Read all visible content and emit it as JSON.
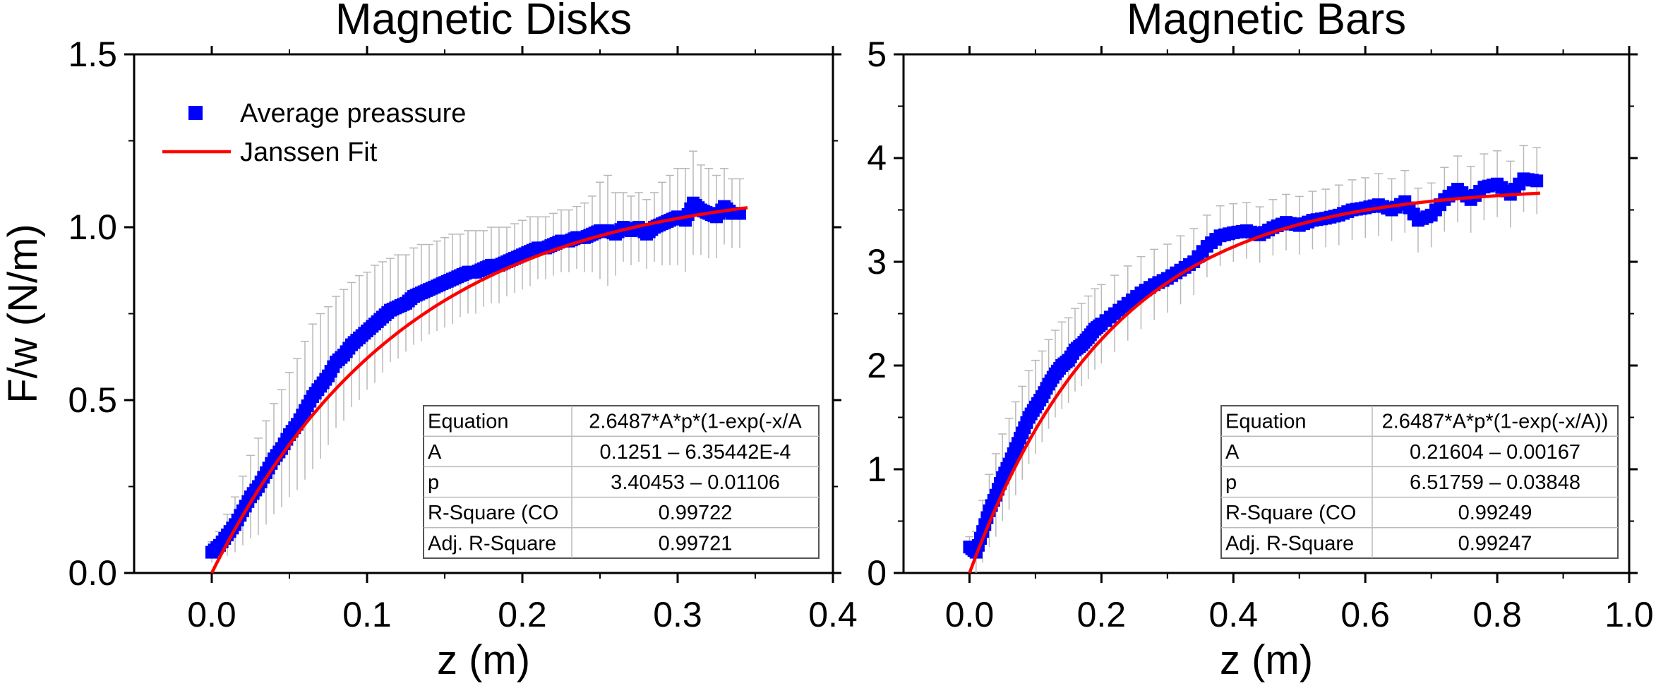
{
  "chart_data": [
    {
      "type": "scatter",
      "title": "Magnetic Disks",
      "xlabel": "z (m)",
      "ylabel": "F/w (N/m)",
      "xlim": [
        -0.05,
        0.4
      ],
      "ylim": [
        0,
        1.5
      ],
      "xticks": [
        "0.0",
        "0.1",
        "0.2",
        "0.3",
        "0.4"
      ],
      "yticks": [
        "0.0",
        "0.5",
        "1.0",
        "1.5"
      ],
      "grid": false,
      "legend_position": "top-left",
      "legend": [
        {
          "label": "Average preassure",
          "marker": "square",
          "color": "#0000ff"
        },
        {
          "label": "Janssen Fit",
          "marker": "line",
          "color": "#ff0000"
        }
      ],
      "series": [
        {
          "name": "Average preassure",
          "kind": "points",
          "color": "#0000ff",
          "x": [
            0.0,
            0.005,
            0.01,
            0.015,
            0.02,
            0.025,
            0.03,
            0.035,
            0.04,
            0.045,
            0.05,
            0.055,
            0.06,
            0.065,
            0.07,
            0.075,
            0.08,
            0.085,
            0.09,
            0.095,
            0.1,
            0.105,
            0.11,
            0.115,
            0.12,
            0.125,
            0.13,
            0.135,
            0.14,
            0.145,
            0.15,
            0.155,
            0.16,
            0.165,
            0.17,
            0.175,
            0.18,
            0.185,
            0.19,
            0.195,
            0.2,
            0.205,
            0.21,
            0.215,
            0.22,
            0.225,
            0.23,
            0.235,
            0.24,
            0.245,
            0.25,
            0.255,
            0.26,
            0.265,
            0.27,
            0.275,
            0.28,
            0.285,
            0.29,
            0.295,
            0.3,
            0.305,
            0.31,
            0.315,
            0.32,
            0.325,
            0.33,
            0.335,
            0.34
          ],
          "y": [
            0.06,
            0.08,
            0.11,
            0.14,
            0.18,
            0.22,
            0.25,
            0.29,
            0.33,
            0.36,
            0.4,
            0.43,
            0.47,
            0.51,
            0.54,
            0.57,
            0.61,
            0.63,
            0.66,
            0.68,
            0.7,
            0.72,
            0.74,
            0.76,
            0.77,
            0.78,
            0.8,
            0.81,
            0.82,
            0.83,
            0.84,
            0.85,
            0.86,
            0.87,
            0.87,
            0.88,
            0.89,
            0.89,
            0.9,
            0.91,
            0.92,
            0.93,
            0.94,
            0.94,
            0.95,
            0.96,
            0.96,
            0.97,
            0.97,
            0.98,
            0.99,
            0.99,
            0.98,
            1.0,
            0.99,
            1.0,
            0.98,
            1.0,
            1.01,
            1.02,
            1.03,
            1.02,
            1.07,
            1.05,
            1.04,
            1.03,
            1.06,
            1.04,
            1.04
          ],
          "error_y": [
            0.03,
            0.04,
            0.06,
            0.08,
            0.1,
            0.12,
            0.14,
            0.15,
            0.16,
            0.17,
            0.18,
            0.19,
            0.2,
            0.21,
            0.21,
            0.2,
            0.19,
            0.19,
            0.18,
            0.18,
            0.17,
            0.17,
            0.16,
            0.15,
            0.15,
            0.14,
            0.14,
            0.14,
            0.13,
            0.13,
            0.13,
            0.13,
            0.12,
            0.12,
            0.12,
            0.11,
            0.11,
            0.11,
            0.1,
            0.1,
            0.1,
            0.1,
            0.09,
            0.09,
            0.09,
            0.09,
            0.09,
            0.09,
            0.1,
            0.11,
            0.14,
            0.16,
            0.12,
            0.1,
            0.1,
            0.1,
            0.1,
            0.1,
            0.12,
            0.13,
            0.14,
            0.15,
            0.15,
            0.13,
            0.13,
            0.12,
            0.11,
            0.1,
            0.1
          ]
        },
        {
          "name": "Janssen Fit",
          "kind": "fit",
          "color": "#ff0000",
          "params": {
            "A": 0.1251,
            "p": 3.40453
          },
          "x_range": [
            0.0,
            0.345
          ]
        }
      ],
      "stats_table": [
        [
          "Equation",
          "2.6487*A*p*(1-exp(-x/A"
        ],
        [
          "A",
          "0.1251 – 6.35442E-4"
        ],
        [
          "p",
          "3.40453 – 0.01106"
        ],
        [
          "R-Square (CO",
          "0.99722"
        ],
        [
          "Adj. R-Square",
          "0.99721"
        ]
      ]
    },
    {
      "type": "scatter",
      "title": "Magnetic Bars",
      "xlabel": "z (m)",
      "ylabel": "",
      "xlim": [
        -0.1,
        1.0
      ],
      "ylim": [
        0,
        5
      ],
      "xticks": [
        "0.0",
        "0.2",
        "0.4",
        "0.6",
        "0.8",
        "1.0"
      ],
      "yticks": [
        "0",
        "1",
        "2",
        "3",
        "4",
        "5"
      ],
      "grid": false,
      "series": [
        {
          "name": "Average preassure",
          "kind": "points",
          "color": "#0000ff",
          "x": [
            0.0,
            0.01,
            0.02,
            0.03,
            0.04,
            0.05,
            0.06,
            0.07,
            0.08,
            0.09,
            0.1,
            0.11,
            0.12,
            0.13,
            0.14,
            0.15,
            0.16,
            0.17,
            0.18,
            0.19,
            0.2,
            0.22,
            0.24,
            0.26,
            0.28,
            0.3,
            0.32,
            0.34,
            0.36,
            0.38,
            0.4,
            0.42,
            0.44,
            0.46,
            0.48,
            0.5,
            0.52,
            0.54,
            0.56,
            0.58,
            0.6,
            0.62,
            0.64,
            0.66,
            0.68,
            0.7,
            0.72,
            0.74,
            0.76,
            0.78,
            0.8,
            0.82,
            0.84,
            0.86
          ],
          "y": [
            0.25,
            0.2,
            0.4,
            0.6,
            0.75,
            0.92,
            1.05,
            1.2,
            1.35,
            1.5,
            1.6,
            1.7,
            1.82,
            1.92,
            2.0,
            2.05,
            2.15,
            2.2,
            2.27,
            2.35,
            2.4,
            2.5,
            2.6,
            2.7,
            2.78,
            2.84,
            2.92,
            3.0,
            3.15,
            3.25,
            3.28,
            3.3,
            3.26,
            3.33,
            3.38,
            3.35,
            3.4,
            3.42,
            3.45,
            3.5,
            3.52,
            3.55,
            3.5,
            3.58,
            3.4,
            3.45,
            3.6,
            3.7,
            3.6,
            3.72,
            3.75,
            3.65,
            3.8,
            3.78
          ],
          "error_y": [
            0.1,
            0.2,
            0.3,
            0.35,
            0.4,
            0.42,
            0.44,
            0.45,
            0.45,
            0.45,
            0.45,
            0.44,
            0.43,
            0.42,
            0.42,
            0.41,
            0.4,
            0.4,
            0.4,
            0.39,
            0.38,
            0.37,
            0.36,
            0.35,
            0.34,
            0.33,
            0.33,
            0.32,
            0.3,
            0.29,
            0.28,
            0.27,
            0.27,
            0.27,
            0.27,
            0.28,
            0.28,
            0.28,
            0.29,
            0.29,
            0.29,
            0.3,
            0.3,
            0.3,
            0.31,
            0.31,
            0.31,
            0.32,
            0.32,
            0.32,
            0.32,
            0.32,
            0.32,
            0.32
          ]
        },
        {
          "name": "Janssen Fit",
          "kind": "fit",
          "color": "#ff0000",
          "params": {
            "A": 0.21604,
            "p": 6.51759
          },
          "x_range": [
            0.0,
            0.865
          ]
        }
      ],
      "stats_table": [
        [
          "Equation",
          "2.6487*A*p*(1-exp(-x/A))"
        ],
        [
          "A",
          "0.21604 – 0.00167"
        ],
        [
          "p",
          "6.51759 – 0.03848"
        ],
        [
          "R-Square (CO",
          "0.99249"
        ],
        [
          "Adj. R-Square",
          "0.99247"
        ]
      ]
    }
  ]
}
